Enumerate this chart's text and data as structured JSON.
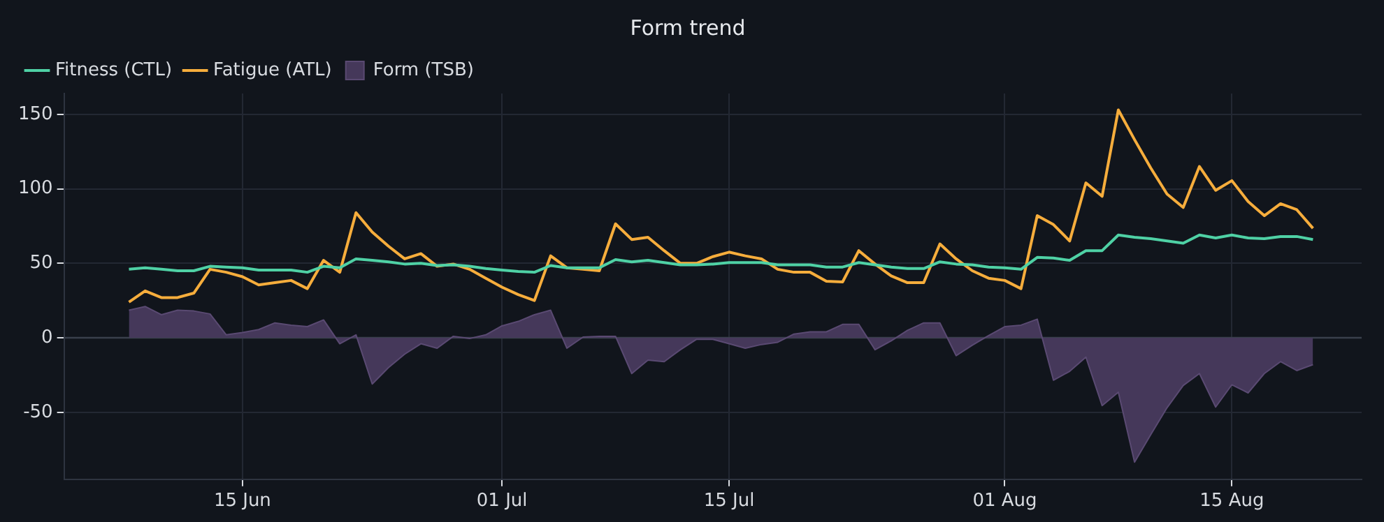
{
  "chart_data": {
    "type": "line",
    "title": "Form trend",
    "x": [
      "--06-08",
      "--06-09",
      "--06-10",
      "--06-11",
      "--06-12",
      "--06-13",
      "--06-14",
      "--06-15",
      "--06-16",
      "--06-17",
      "--06-18",
      "--06-19",
      "--06-20",
      "--06-21",
      "--06-22",
      "--06-23",
      "--06-24",
      "--06-25",
      "--06-26",
      "--06-27",
      "--06-28",
      "--06-29",
      "--06-30",
      "--07-01",
      "--07-02",
      "--07-03",
      "--07-04",
      "--07-05",
      "--07-06",
      "--07-07",
      "--07-08",
      "--07-09",
      "--07-10",
      "--07-11",
      "--07-12",
      "--07-13",
      "--07-14",
      "--07-15",
      "--07-16",
      "--07-17",
      "--07-18",
      "--07-19",
      "--07-20",
      "--07-21",
      "--07-22",
      "--07-23",
      "--07-24",
      "--07-25",
      "--07-26",
      "--07-27",
      "--07-28",
      "--07-29",
      "--07-30",
      "--07-31",
      "--08-01",
      "--08-02",
      "--08-03",
      "--08-04",
      "--08-05",
      "--08-06",
      "--08-07",
      "--08-08",
      "--08-09",
      "--08-10",
      "--08-11",
      "--08-12",
      "--08-13",
      "--08-14",
      "--08-15",
      "--08-16",
      "--08-17",
      "--08-18",
      "--08-19",
      "--08-20"
    ],
    "series": [
      {
        "name": "Fitness (CTL)",
        "color": "#4fd1a5",
        "values": [
          46,
          47,
          46,
          45,
          45,
          48,
          47.5,
          47,
          45.5,
          45.5,
          45.5,
          44,
          48,
          47,
          53,
          52,
          51,
          49.5,
          50,
          48.5,
          49,
          48,
          46.5,
          45.5,
          44.5,
          44,
          48.5,
          47,
          47,
          47,
          52.5,
          51,
          52,
          50.5,
          49,
          49,
          49.5,
          50.5,
          50.5,
          50.5,
          49,
          49,
          49,
          47.5,
          47.5,
          50.5,
          49,
          47.5,
          46.5,
          46.5,
          51,
          49.5,
          49,
          47.5,
          47,
          46,
          54,
          53.5,
          52,
          58.5,
          58.5,
          69,
          67.5,
          66.5,
          65,
          63.5,
          69,
          67,
          69,
          67,
          66.5,
          68,
          68,
          66
        ]
      },
      {
        "name": "Fatigue (ATL)",
        "color": "#f6ad3c",
        "values": [
          24,
          31.5,
          27,
          27,
          30,
          46,
          44,
          41,
          35.5,
          37,
          38.5,
          33,
          52,
          44,
          84,
          71,
          61.5,
          53,
          56.5,
          48,
          49.5,
          46,
          40,
          34,
          29,
          25,
          55,
          47,
          46,
          45,
          76.5,
          66,
          67.5,
          58.5,
          50,
          50,
          54.5,
          57.5,
          55,
          53,
          46,
          44,
          44,
          38,
          37.5,
          58.5,
          49.5,
          41.5,
          37,
          37,
          63,
          53,
          45,
          40,
          38.5,
          33,
          82,
          76,
          65,
          104,
          95,
          153,
          133,
          114,
          96.5,
          87.5,
          115,
          99,
          105.5,
          91.5,
          82,
          90,
          86,
          73.5
        ]
      },
      {
        "name": "Form (TSB)",
        "type": "area",
        "color": "#45385a",
        "values": [
          18.5,
          21,
          15.5,
          18.5,
          18,
          16,
          2,
          3.5,
          5.5,
          10,
          8.5,
          7.5,
          12,
          -4,
          2,
          -31,
          -20,
          -11,
          -4,
          -7,
          1,
          -0.5,
          2,
          8,
          11,
          15.5,
          18.5,
          -7,
          0.5,
          1,
          1,
          -24,
          -15,
          -16,
          -8,
          -1,
          -1,
          -4,
          -7,
          -4.5,
          -3,
          2.5,
          4,
          4,
          9,
          9,
          -8,
          -2,
          5,
          10,
          10,
          -12,
          -5,
          1.5,
          7.5,
          8.5,
          12.5,
          -28.5,
          -22.5,
          -13,
          -45.5,
          -36.5,
          -83.5,
          -65,
          -47,
          -32,
          -24,
          -46.5,
          -31.5,
          -37,
          -24,
          -16,
          -22,
          -18
        ]
      }
    ],
    "xlim": [
      "--06-04",
      "--08-23"
    ],
    "xticks": [
      {
        "value": "--06-15",
        "label": "15 Jun"
      },
      {
        "value": "--07-01",
        "label": "01 Jul"
      },
      {
        "value": "--07-15",
        "label": "15 Jul"
      },
      {
        "value": "--08-01",
        "label": "01 Aug"
      },
      {
        "value": "--08-15",
        "label": "15 Aug"
      }
    ],
    "ylim": [
      -95,
      164
    ],
    "yticks": [
      -50,
      0,
      50,
      100,
      150
    ],
    "ref_lines": [
      {
        "axis": "y",
        "value": 0,
        "color": "#3a404c"
      }
    ],
    "grid": true,
    "legend": "top left",
    "marker": "none",
    "line_style": "solid"
  }
}
